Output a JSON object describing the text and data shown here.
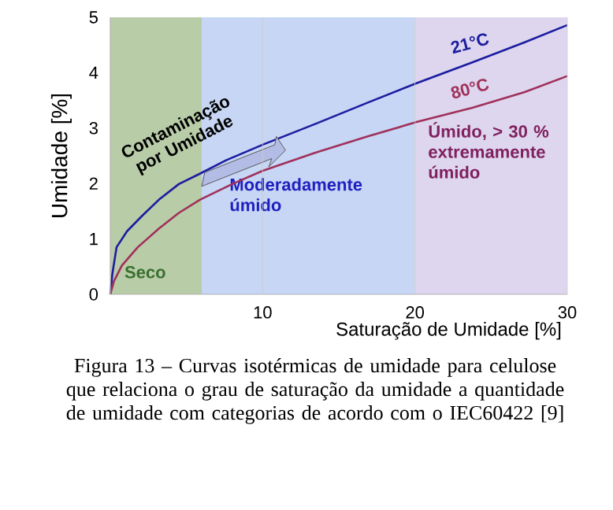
{
  "chart_data": {
    "type": "line",
    "xlabel": "Saturação de Umidade [%]",
    "ylabel": "Umidade [%]",
    "xlim": [
      0,
      30
    ],
    "ylim": [
      0,
      5
    ],
    "xticks": [
      {
        "value": 0,
        "label": null
      },
      10,
      20,
      30
    ],
    "yticks": [
      0,
      1,
      2,
      3,
      4,
      5
    ],
    "grid": "x",
    "legend": false,
    "series": [
      {
        "name": "21°C",
        "color": "#1c1ca0",
        "x": [
          0,
          0.14,
          0.41,
          1.1,
          2.1,
          3.2,
          4.5,
          5.9,
          7.6,
          10,
          13.5,
          16.9,
          20.1,
          23.8,
          27.2,
          30
        ],
        "values": [
          0,
          0.38,
          0.85,
          1.14,
          1.42,
          1.71,
          1.99,
          2.18,
          2.42,
          2.7,
          3.08,
          3.46,
          3.81,
          4.19,
          4.55,
          4.86
        ]
      },
      {
        "name": "80°C",
        "color": "#a0305a",
        "x": [
          0,
          0.24,
          0.76,
          1.8,
          3.2,
          4.5,
          5.9,
          8,
          10,
          13.5,
          16.9,
          20.1,
          23.8,
          27.2,
          30
        ],
        "values": [
          0,
          0.24,
          0.52,
          0.85,
          1.19,
          1.47,
          1.71,
          1.99,
          2.23,
          2.56,
          2.85,
          3.11,
          3.37,
          3.65,
          3.94
        ]
      }
    ],
    "bands": [
      {
        "axis": "x",
        "from": 0,
        "to": 6,
        "label": "Seco",
        "color": "#b9cca8"
      },
      {
        "axis": "x",
        "from": 6,
        "to": 20,
        "label": "Moderadamente úmido",
        "color": "#c6d6f4"
      },
      {
        "axis": "x",
        "from": 20,
        "to": 30,
        "label": "**Úmido,** > 30 % extremamente úmido",
        "color": "#ddd6ee"
      }
    ],
    "annotations": [
      "Contaminação por Umidade",
      "Figura 13 – Curvas isotérmicas de umidade para celulose que relaciona o grau de saturação da umidade a quantidade de umidade com categorias de acordo com o IEC60422 [9]"
    ]
  }
}
